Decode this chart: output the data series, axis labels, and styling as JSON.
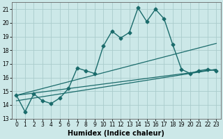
{
  "xlabel": "Humidex (Indice chaleur)",
  "background_color": "#cce8e8",
  "grid_color": "#aacccc",
  "line_color": "#1a6b6b",
  "xlim": [
    -0.5,
    23.5
  ],
  "ylim": [
    13,
    21.5
  ],
  "yticks": [
    13,
    14,
    15,
    16,
    17,
    18,
    19,
    20,
    21
  ],
  "xticks": [
    0,
    1,
    2,
    3,
    4,
    5,
    6,
    7,
    8,
    9,
    10,
    11,
    12,
    13,
    14,
    15,
    16,
    17,
    18,
    19,
    20,
    21,
    22,
    23
  ],
  "main_x": [
    0,
    1,
    2,
    3,
    4,
    5,
    6,
    7,
    8,
    9,
    10,
    11,
    12,
    13,
    14,
    15,
    16,
    17,
    18,
    19,
    20,
    21,
    22,
    23
  ],
  "main_y": [
    14.7,
    13.5,
    14.8,
    14.3,
    14.1,
    14.5,
    15.2,
    16.7,
    16.5,
    16.3,
    18.3,
    19.4,
    18.9,
    19.3,
    21.1,
    20.1,
    21.0,
    20.3,
    18.4,
    16.6,
    16.3,
    16.5,
    16.6,
    16.5
  ],
  "trend1_x": [
    0,
    23
  ],
  "trend1_y": [
    14.7,
    18.5
  ],
  "trend2_x": [
    0,
    23
  ],
  "trend2_y": [
    14.7,
    16.6
  ],
  "trend3_x": [
    0,
    23
  ],
  "trend3_y": [
    14.3,
    16.6
  ],
  "xlabel_fontsize": 7,
  "tick_fontsize": 5.5,
  "xlabel_fontweight": "bold"
}
